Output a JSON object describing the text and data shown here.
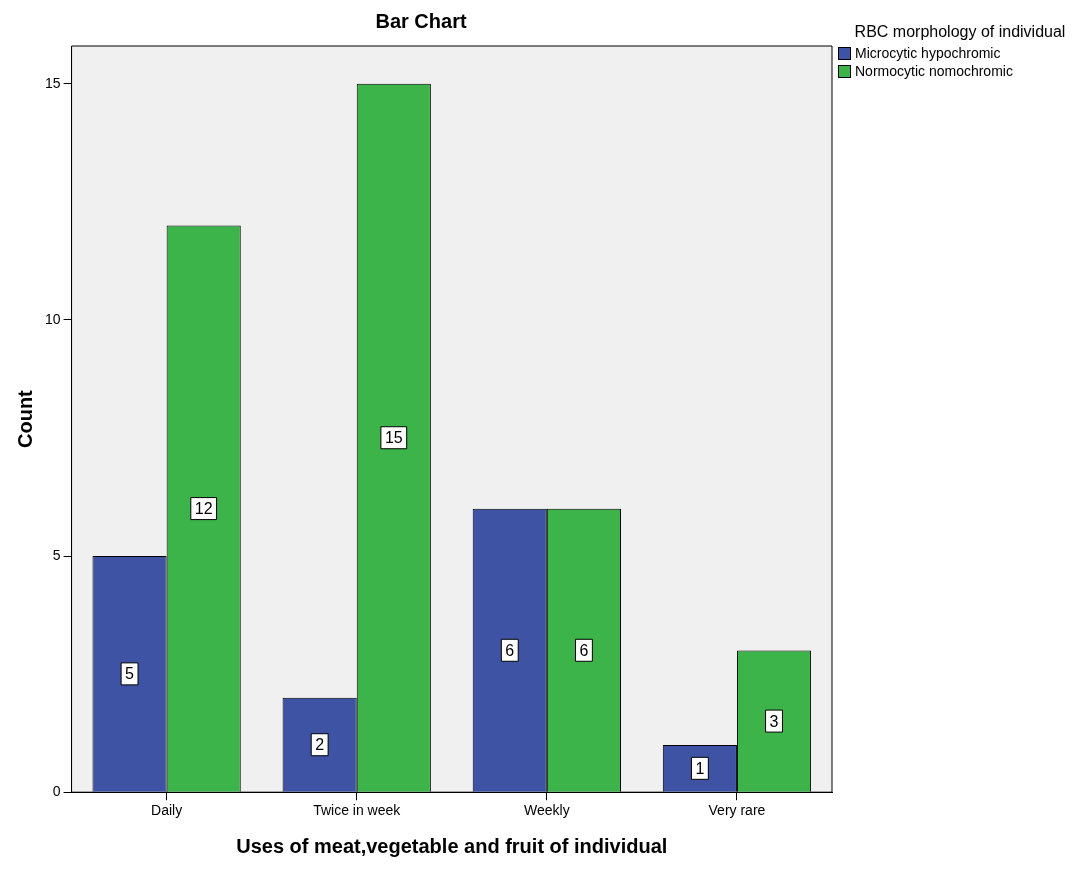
{
  "chart_data": {
    "type": "bar",
    "title": "Bar Chart",
    "xlabel": "Uses of meat,vegetable and fruit of individual",
    "ylabel": "Count",
    "legend_title": "RBC morphology of individual",
    "categories": [
      "Daily",
      "Twice in week",
      "Weekly",
      "Very rare"
    ],
    "series": [
      {
        "name": "Microcytic hypochromic",
        "color": "#3e53a4",
        "values": [
          5,
          2,
          6,
          1
        ]
      },
      {
        "name": "Normocytic nomochromic",
        "color": "#3cb44a",
        "values": [
          12,
          15,
          6,
          3
        ]
      }
    ],
    "ylim": [
      0,
      15.8
    ],
    "yticks": [
      0,
      5,
      10,
      15
    ],
    "grid": false,
    "legend": "right",
    "data_labels": true
  }
}
